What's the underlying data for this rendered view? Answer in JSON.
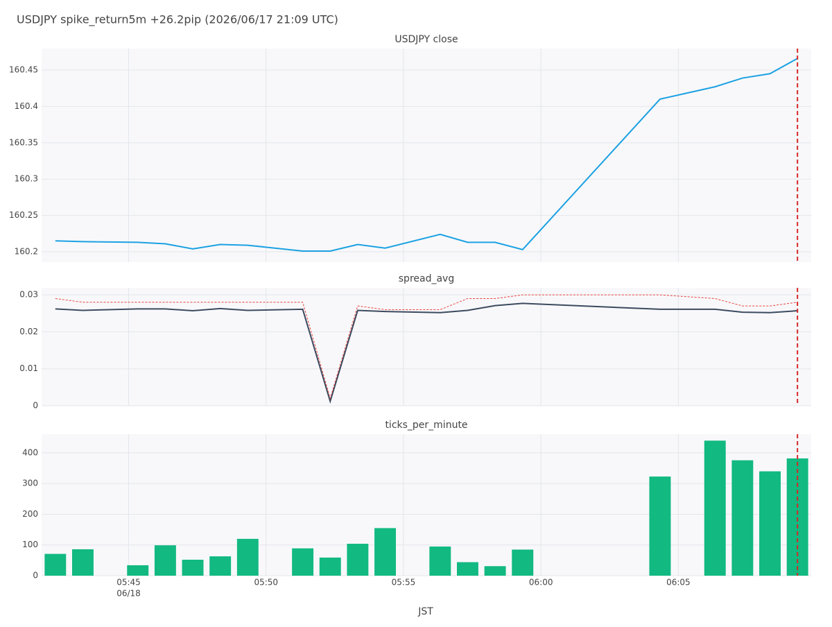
{
  "title": "USDJPY spike_return5m +26.2pip (2026/06/17 21:09 UTC)",
  "x_axis": {
    "title": "JST",
    "date_label": "06/18",
    "x": [
      "05:42:20",
      "05:43:20",
      "05:45:20",
      "05:46:20",
      "05:47:20",
      "05:48:20",
      "05:49:20",
      "05:51:20",
      "05:52:20",
      "05:53:20",
      "05:54:20",
      "05:56:20",
      "05:57:20",
      "05:58:20",
      "05:59:20",
      "06:04:20",
      "06:06:20",
      "06:07:20",
      "06:08:20",
      "06:09:20"
    ],
    "xlim": [
      "05:41:50",
      "06:09:50"
    ],
    "xticks": [
      "05:45",
      "05:50",
      "05:55",
      "06:00",
      "06:05"
    ],
    "vline": {
      "x": "06:09:20",
      "color": "#d62728"
    }
  },
  "chart_data": [
    {
      "type": "line",
      "title": "USDJPY close",
      "grid": true,
      "series": [
        {
          "color": "#1ba1e2",
          "values": [
            160.215,
            160.214,
            160.213,
            160.211,
            160.204,
            160.21,
            160.209,
            160.201,
            160.201,
            160.21,
            160.205,
            160.224,
            160.213,
            160.213,
            160.203,
            160.41,
            160.427,
            160.439,
            160.445,
            160.466
          ]
        }
      ],
      "ylim": [
        160.1857,
        160.4796
      ],
      "yticks": [
        160.2,
        160.25,
        160.3,
        160.35,
        160.4,
        160.45
      ]
    },
    {
      "type": "line",
      "title": "spread_avg",
      "grid": true,
      "series": [
        {
          "color": "#3c4a5f",
          "values": [
            0.0262,
            0.0258,
            0.0262,
            0.0262,
            0.0257,
            0.0263,
            0.0258,
            0.0261,
            0.0012,
            0.0258,
            0.0255,
            0.0252,
            0.0258,
            0.0271,
            0.0277,
            0.0261,
            0.0261,
            0.0253,
            0.0252,
            0.0257
          ]
        },
        {
          "color": "#e8413c",
          "dash": "dot",
          "values": [
            0.029,
            0.028,
            0.028,
            0.028,
            0.028,
            0.028,
            0.028,
            0.028,
            0.002,
            0.027,
            0.026,
            0.026,
            0.029,
            0.029,
            0.03,
            0.03,
            0.029,
            0.027,
            0.027,
            0.028
          ]
        }
      ],
      "ylim": [
        0,
        0.0319
      ],
      "yticks": [
        0,
        0.01,
        0.02,
        0.03
      ]
    },
    {
      "type": "bar",
      "title": "ticks_per_minute",
      "grid": true,
      "color": "#12b981",
      "values": [
        71,
        86,
        34,
        99,
        52,
        63,
        120,
        89,
        59,
        104,
        155,
        95,
        44,
        31,
        85,
        323,
        440,
        376,
        340,
        382
      ],
      "ylim": [
        0,
        461
      ],
      "yticks": [
        0,
        100,
        200,
        300,
        400
      ]
    }
  ]
}
